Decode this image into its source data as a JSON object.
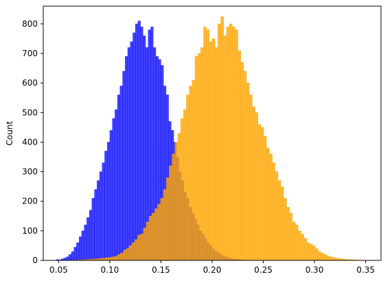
{
  "chart_data": {
    "type": "bar",
    "title": "",
    "xlabel": "",
    "ylabel": "Count",
    "xlim": [
      0.035,
      0.365
    ],
    "ylim": [
      0,
      860
    ],
    "grid": false,
    "legend": "none",
    "xticks": [
      0.05,
      0.1,
      0.15,
      0.2,
      0.25,
      0.3,
      0.35
    ],
    "xtick_labels": [
      "0.05",
      "0.10",
      "0.15",
      "0.20",
      "0.25",
      "0.30",
      "0.35"
    ],
    "yticks": [
      0,
      100,
      200,
      300,
      400,
      500,
      600,
      700,
      800
    ],
    "ytick_labels": [
      "0",
      "100",
      "200",
      "300",
      "400",
      "500",
      "600",
      "700",
      "800"
    ],
    "series": [
      {
        "color": "#0000ff",
        "opacity": 0.75,
        "bin_width": 0.0025,
        "bin_starts": [
          0.0475,
          0.05,
          0.0525,
          0.055,
          0.0575,
          0.06,
          0.0625,
          0.065,
          0.0675,
          0.07,
          0.0725,
          0.075,
          0.0775,
          0.08,
          0.0825,
          0.085,
          0.0875,
          0.09,
          0.0925,
          0.095,
          0.0975,
          0.1,
          0.1025,
          0.105,
          0.1075,
          0.11,
          0.1125,
          0.115,
          0.1175,
          0.12,
          0.1225,
          0.125,
          0.1275,
          0.13,
          0.1325,
          0.135,
          0.1375,
          0.14,
          0.1425,
          0.145,
          0.1475,
          0.15,
          0.1525,
          0.155,
          0.1575,
          0.16,
          0.1625,
          0.165,
          0.1675,
          0.17,
          0.1725,
          0.175,
          0.1775,
          0.18,
          0.1825,
          0.185,
          0.1875,
          0.19,
          0.1925,
          0.195,
          0.1975,
          0.2,
          0.2025,
          0.205,
          0.2075,
          0.21,
          0.2125,
          0.215,
          0.2175,
          0.22,
          0.2225,
          0.225,
          0.2275,
          0.23,
          0.2325,
          0.235
        ],
        "values": [
          3,
          2,
          5,
          8,
          12,
          20,
          30,
          45,
          60,
          80,
          100,
          120,
          145,
          170,
          210,
          240,
          270,
          300,
          330,
          370,
          400,
          440,
          480,
          510,
          560,
          590,
          640,
          690,
          720,
          740,
          770,
          800,
          810,
          790,
          760,
          720,
          780,
          790,
          720,
          690,
          680,
          660,
          590,
          560,
          470,
          440,
          400,
          350,
          300,
          270,
          230,
          210,
          180,
          160,
          140,
          120,
          100,
          90,
          75,
          60,
          50,
          40,
          32,
          25,
          20,
          15,
          12,
          8,
          6,
          5,
          4,
          3,
          2,
          2,
          1,
          1
        ]
      },
      {
        "color": "#ffa500",
        "opacity": 0.8,
        "bin_width": 0.0028,
        "bin_starts": [
          0.06,
          0.0628,
          0.0656,
          0.0684,
          0.0712,
          0.074,
          0.0768,
          0.0796,
          0.0824,
          0.0852,
          0.088,
          0.0908,
          0.0936,
          0.0964,
          0.0992,
          0.102,
          0.1048,
          0.1076,
          0.1104,
          0.1132,
          0.116,
          0.1188,
          0.1216,
          0.1244,
          0.1272,
          0.13,
          0.1328,
          0.1356,
          0.1384,
          0.1412,
          0.144,
          0.1468,
          0.1496,
          0.1524,
          0.1552,
          0.158,
          0.1608,
          0.1636,
          0.1664,
          0.1692,
          0.172,
          0.1748,
          0.1776,
          0.1804,
          0.1832,
          0.186,
          0.1888,
          0.1916,
          0.1944,
          0.1972,
          0.2,
          0.2028,
          0.2056,
          0.2084,
          0.2112,
          0.214,
          0.2168,
          0.2196,
          0.2224,
          0.2252,
          0.228,
          0.2308,
          0.2336,
          0.2364,
          0.2392,
          0.242,
          0.2448,
          0.2476,
          0.2504,
          0.2532,
          0.256,
          0.2588,
          0.2616,
          0.2644,
          0.2672,
          0.27,
          0.2728,
          0.2756,
          0.2784,
          0.2812,
          0.284,
          0.2868,
          0.2896,
          0.2924,
          0.2952,
          0.298,
          0.3008,
          0.3036,
          0.3064,
          0.3092,
          0.312,
          0.3148,
          0.3176,
          0.3204,
          0.3232,
          0.326,
          0.3288,
          0.3316,
          0.3344,
          0.3372,
          0.34,
          0.3428,
          0.3456
        ],
        "values": [
          1,
          1,
          1,
          2,
          2,
          3,
          3,
          4,
          4,
          5,
          6,
          7,
          8,
          9,
          10,
          12,
          14,
          20,
          25,
          35,
          40,
          50,
          60,
          70,
          85,
          90,
          110,
          130,
          150,
          160,
          175,
          190,
          210,
          240,
          280,
          320,
          360,
          400,
          430,
          480,
          510,
          560,
          590,
          610,
          690,
          700,
          720,
          790,
          780,
          740,
          750,
          720,
          800,
          825,
          760,
          790,
          800,
          790,
          780,
          710,
          670,
          640,
          600,
          560,
          520,
          500,
          460,
          450,
          420,
          380,
          360,
          330,
          300,
          270,
          250,
          210,
          180,
          160,
          130,
          120,
          100,
          90,
          75,
          60,
          55,
          50,
          40,
          30,
          25,
          20,
          15,
          12,
          10,
          8,
          6,
          5,
          4,
          3,
          3,
          2,
          2,
          1,
          1
        ]
      }
    ]
  }
}
